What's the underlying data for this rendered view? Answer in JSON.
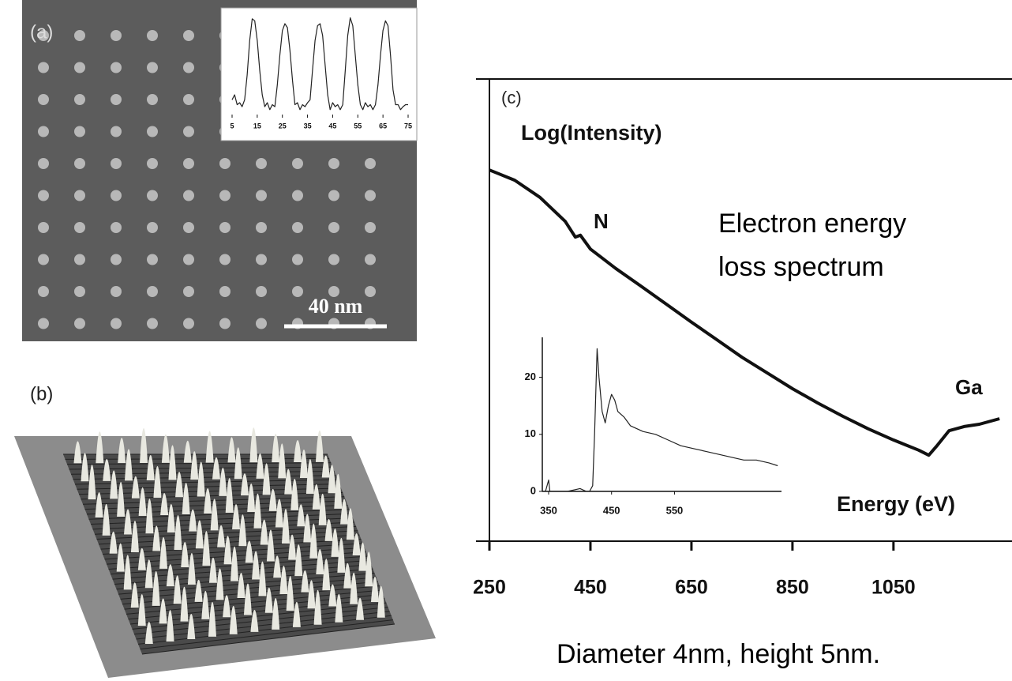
{
  "panels": {
    "a": {
      "label": "(a)",
      "scale_bar": "40 nm"
    },
    "b": {
      "label": "(b)"
    }
  },
  "caption": "Diameter 4nm, height 5nm.",
  "chart_data": [
    {
      "type": "line",
      "color": "#222222",
      "x": [
        5,
        6,
        7,
        8,
        9,
        10,
        11,
        12,
        13,
        14,
        15,
        16,
        17,
        18,
        19,
        20,
        21,
        22,
        23,
        24,
        25,
        26,
        27,
        28,
        29,
        30,
        31,
        32,
        33,
        34,
        35,
        36,
        37,
        38,
        39,
        40,
        41,
        42,
        43,
        44,
        45,
        46,
        47,
        48,
        49,
        50,
        51,
        52,
        53,
        54,
        55,
        56,
        57,
        58,
        59,
        60,
        61,
        62,
        63,
        64,
        65,
        66,
        67,
        68,
        69,
        70,
        71,
        72,
        73,
        74,
        75
      ],
      "values": [
        0.15,
        0.2,
        0.1,
        0.12,
        0.08,
        0.15,
        0.4,
        0.75,
        0.97,
        0.95,
        0.75,
        0.45,
        0.2,
        0.08,
        0.12,
        0.05,
        0.1,
        0.08,
        0.3,
        0.6,
        0.85,
        0.92,
        0.88,
        0.65,
        0.35,
        0.1,
        0.12,
        0.05,
        0.1,
        0.08,
        0.12,
        0.15,
        0.45,
        0.75,
        0.9,
        0.92,
        0.8,
        0.5,
        0.2,
        0.05,
        0.12,
        0.08,
        0.1,
        0.05,
        0.1,
        0.45,
        0.8,
        0.98,
        0.9,
        0.6,
        0.3,
        0.1,
        0.05,
        0.12,
        0.08,
        0.1,
        0.05,
        0.1,
        0.3,
        0.6,
        0.85,
        0.95,
        0.9,
        0.6,
        0.25,
        0.1,
        0.1,
        0.05,
        0.08,
        0.1,
        0.1
      ],
      "xlim": [
        5,
        75
      ],
      "xticks": [
        5,
        15,
        25,
        35,
        45,
        55,
        65,
        75
      ],
      "ylim": [
        0,
        1
      ]
    },
    {
      "type": "line",
      "color": "#111111",
      "panel_label": "(c)",
      "y_label": "Log(Intensity)",
      "x_label": "Energy (eV)",
      "title": [
        "Electron energy",
        "loss spectrum"
      ],
      "annotations": [
        "N",
        "Ga"
      ],
      "x": [
        250,
        300,
        350,
        400,
        420,
        430,
        450,
        500,
        550,
        600,
        650,
        700,
        750,
        800,
        850,
        900,
        950,
        1000,
        1050,
        1100,
        1120,
        1135,
        1160,
        1190,
        1220,
        1260
      ],
      "values": [
        8.03,
        7.81,
        7.44,
        6.92,
        6.58,
        6.62,
        6.32,
        5.9,
        5.52,
        5.13,
        4.74,
        4.36,
        3.98,
        3.64,
        3.3,
        2.99,
        2.7,
        2.43,
        2.19,
        1.97,
        1.86,
        2.05,
        2.39,
        2.48,
        2.53,
        2.65
      ],
      "xlim": [
        250,
        1280
      ],
      "xticks": [
        250,
        450,
        650,
        850,
        1050
      ],
      "ylim": [
        0,
        10
      ]
    },
    {
      "type": "line",
      "color": "#222222",
      "x": [
        340,
        345,
        350,
        352,
        355,
        360,
        380,
        400,
        410,
        415,
        420,
        423,
        427,
        430,
        435,
        440,
        445,
        450,
        455,
        460,
        470,
        480,
        490,
        500,
        520,
        540,
        560,
        580,
        600,
        620,
        640,
        660,
        680,
        700,
        714
      ],
      "values": [
        0,
        0,
        2,
        0,
        0,
        0,
        0,
        0.5,
        0,
        0,
        1,
        10,
        25,
        20,
        14,
        12,
        15,
        17,
        16,
        14,
        13,
        11.5,
        11,
        10.5,
        10,
        9,
        8,
        7.5,
        7,
        6.5,
        6,
        5.5,
        5.5,
        5,
        4.5
      ],
      "xlim": [
        340,
        720
      ],
      "xticks": [
        350,
        450,
        550
      ],
      "ylim": [
        0,
        27
      ],
      "yticks": [
        0,
        10,
        20
      ]
    }
  ]
}
